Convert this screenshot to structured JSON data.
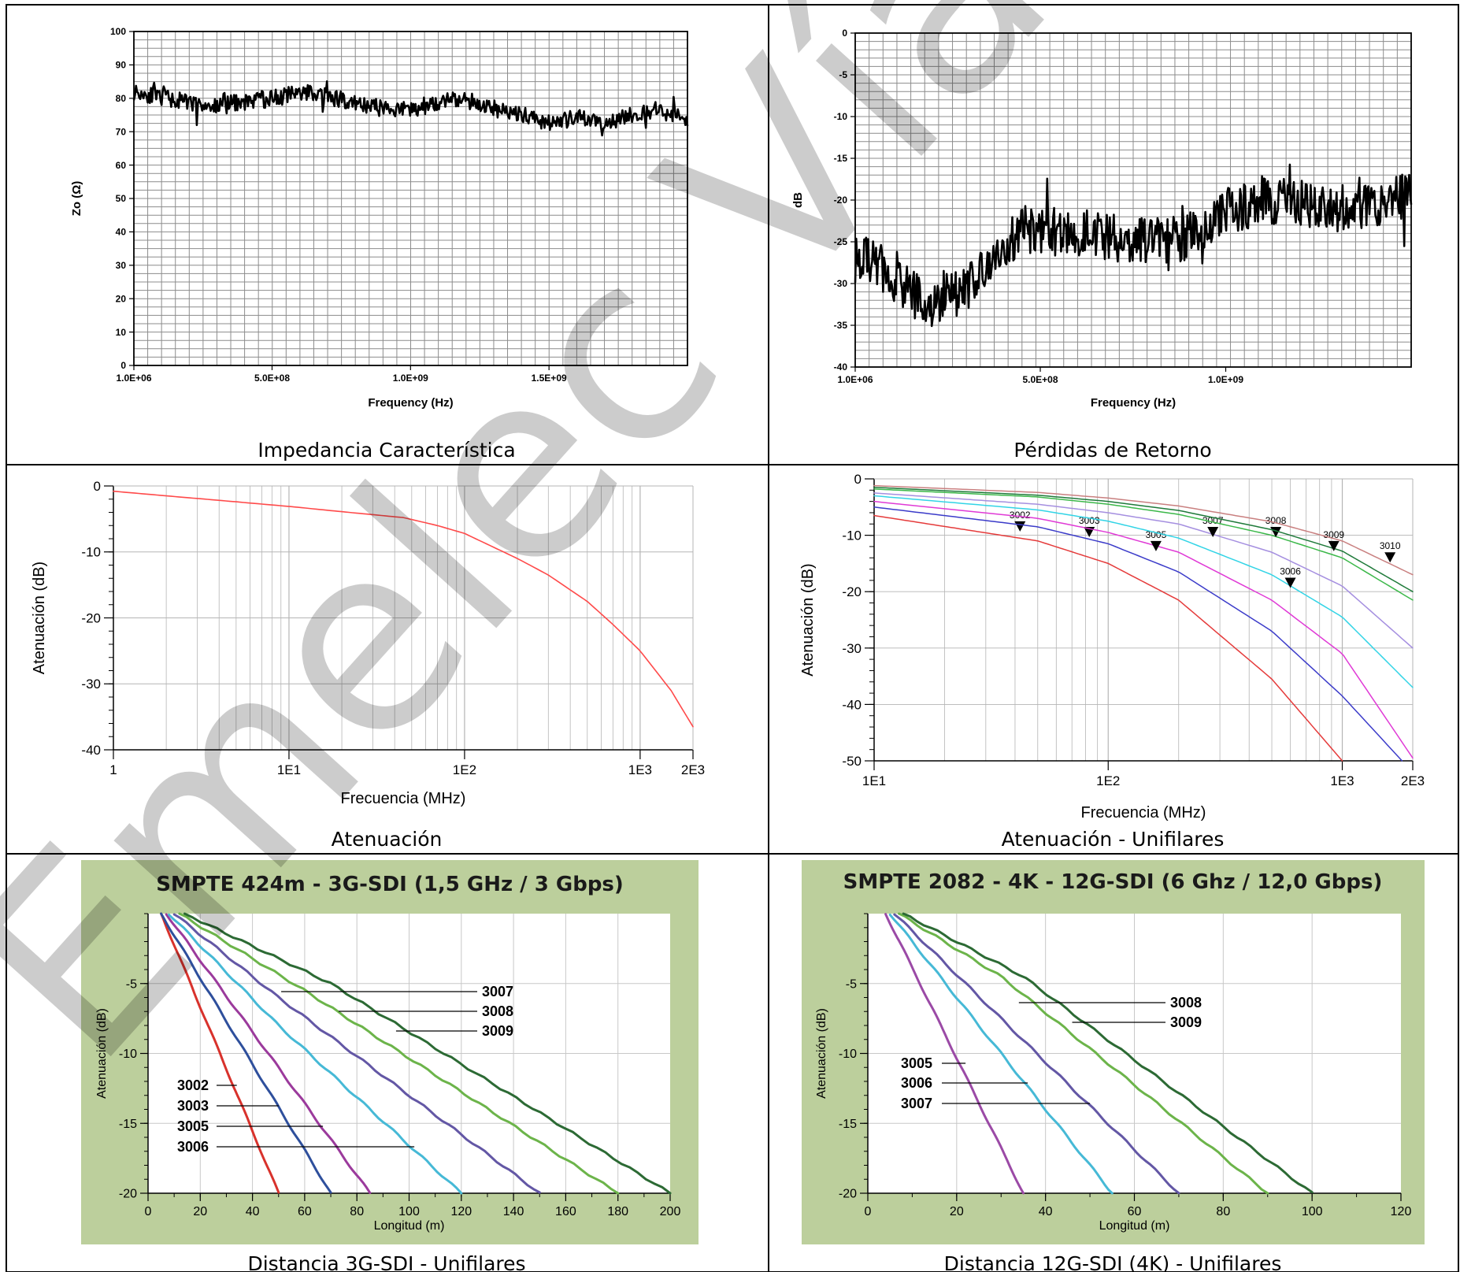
{
  "captions": {
    "c1": "Impedancia Característica",
    "c2": "Pérdidas de Retorno",
    "c3": "Atenuación",
    "c4": "Atenuación - Unifilares",
    "c5": "Distancia 3G-SDI - Unifilares",
    "c6": "Distancia 12G-SDI (4K) - Unifilares"
  },
  "watermark": "Emelec Vías",
  "colors": {
    "border": "#000000",
    "panel_green": "#bccf9c",
    "grid": "#9a9a9a",
    "trace": "#000000"
  },
  "chart_data": [
    {
      "id": "impedance",
      "type": "line",
      "title": "",
      "xlabel": "Frequency (Hz)",
      "ylabel": "Zo (Ω)",
      "xlim": [
        1000000,
        2000000000
      ],
      "ylim": [
        0,
        100
      ],
      "x_ticks": [
        {
          "v": 1000000,
          "label": "1.0E+06"
        },
        {
          "v": 500000000,
          "label": "5.0E+08"
        },
        {
          "v": 1000000000,
          "label": "1.0E+09"
        },
        {
          "v": 1500000000,
          "label": "1.5E+09"
        }
      ],
      "y_ticks": [
        0,
        10,
        20,
        30,
        40,
        50,
        60,
        70,
        80,
        90,
        100
      ],
      "grid": true,
      "series": [
        {
          "x": [
            1000000,
            100000000,
            200000000,
            300000000,
            400000000,
            500000000,
            600000000,
            650000000,
            700000000,
            800000000,
            900000000,
            1000000000,
            1100000000,
            1200000000,
            1300000000,
            1400000000,
            1500000000,
            1600000000,
            1700000000,
            1800000000,
            1900000000,
            2000000000
          ],
          "y": [
            82,
            80.5,
            78.5,
            77.5,
            79,
            80,
            81.5,
            82,
            80.5,
            78.5,
            77,
            76.5,
            79,
            79.5,
            77,
            75.5,
            72.5,
            74,
            73,
            75,
            76.5,
            74
          ]
        }
      ]
    },
    {
      "id": "return-loss",
      "type": "line",
      "title": "",
      "xlabel": "Frequency (Hz)",
      "ylabel": "dB",
      "xlim": [
        1000000,
        1500000000
      ],
      "ylim": [
        -40,
        0
      ],
      "x_ticks": [
        {
          "v": 1000000,
          "label": "1.0E+06"
        },
        {
          "v": 500000000,
          "label": "5.0E+08"
        },
        {
          "v": 1000000000,
          "label": "1.0E+09"
        }
      ],
      "y_ticks": [
        0,
        -5,
        -10,
        -15,
        -20,
        -25,
        -30,
        -35,
        -40
      ],
      "grid": true,
      "series": [
        {
          "x": [
            1000000,
            50000000,
            100000000,
            150000000,
            200000000,
            250000000,
            300000000,
            350000000,
            400000000,
            450000000,
            500000000,
            600000000,
            700000000,
            800000000,
            900000000,
            950000000,
            1000000000,
            1100000000,
            1200000000,
            1300000000,
            1400000000,
            1500000000
          ],
          "y": [
            -27,
            -27.5,
            -29,
            -31,
            -32.5,
            -31.5,
            -30.5,
            -28.5,
            -25.5,
            -23.5,
            -24,
            -23.5,
            -24.5,
            -25,
            -24.5,
            -22.5,
            -21.5,
            -20,
            -20.5,
            -21,
            -20.5,
            -19.5
          ]
        }
      ]
    },
    {
      "id": "attenuation",
      "type": "line",
      "title": "",
      "xlabel": "Frecuencia (MHz)",
      "ylabel": "Atenuación (dB)",
      "x_scale": "log",
      "xlim": [
        1,
        2000
      ],
      "ylim": [
        -40,
        0
      ],
      "x_ticks": [
        {
          "v": 1,
          "label": "1"
        },
        {
          "v": 10,
          "label": "1E1"
        },
        {
          "v": 100,
          "label": "1E2"
        },
        {
          "v": 1000,
          "label": "1E3"
        },
        {
          "v": 2000,
          "label": "2E3"
        }
      ],
      "y_ticks": [
        0,
        -10,
        -20,
        -30,
        -40
      ],
      "grid": true,
      "series": [
        {
          "color": "#ff4a4a",
          "x": [
            1,
            2,
            5,
            10,
            20,
            45,
            70,
            100,
            200,
            300,
            500,
            700,
            1000,
            1500,
            2000
          ],
          "y": [
            -0.8,
            -1.5,
            -2.4,
            -3.1,
            -3.9,
            -4.8,
            -6,
            -7.2,
            -11,
            -13.5,
            -17.5,
            -21,
            -25,
            -31,
            -36.5
          ]
        }
      ]
    },
    {
      "id": "attenuation-unifilares",
      "type": "line",
      "title": "",
      "xlabel": "Frecuencia (MHz)",
      "ylabel": "Atenuación (dB)",
      "x_scale": "log",
      "xlim": [
        10,
        2000
      ],
      "ylim": [
        -50,
        0
      ],
      "x_ticks": [
        {
          "v": 10,
          "label": "1E1"
        },
        {
          "v": 100,
          "label": "1E2"
        },
        {
          "v": 1000,
          "label": "1E3"
        },
        {
          "v": 2000,
          "label": "2E3"
        }
      ],
      "y_ticks": [
        0,
        -10,
        -20,
        -30,
        -40,
        -50
      ],
      "grid": true,
      "series": [
        {
          "name": "3002",
          "color": "#e53b3b",
          "x": [
            10,
            50,
            100,
            200,
            500,
            1000
          ],
          "y": [
            -6.5,
            -11,
            -15,
            -21.5,
            -35.5,
            -50
          ],
          "marker_x": 42,
          "marker_y": -8.5
        },
        {
          "name": "3003",
          "color": "#3b3bc9",
          "x": [
            10,
            50,
            100,
            200,
            500,
            1000,
            1800
          ],
          "y": [
            -5,
            -8.5,
            -11.5,
            -16.5,
            -27,
            -38.5,
            -50
          ],
          "marker_x": 83,
          "marker_y": -9.5
        },
        {
          "name": "3005",
          "color": "#e03ad6",
          "x": [
            10,
            50,
            100,
            200,
            500,
            1000,
            2000
          ],
          "y": [
            -4,
            -7,
            -9.5,
            -13,
            -21.5,
            -31,
            -49.5
          ],
          "marker_x": 160,
          "marker_y": -12
        },
        {
          "name": "3006",
          "color": "#32d4e6",
          "x": [
            10,
            50,
            100,
            200,
            500,
            1000,
            2000
          ],
          "y": [
            -3,
            -5.5,
            -7.5,
            -10.5,
            -17,
            -24.5,
            -37
          ],
          "marker_x": 600,
          "marker_y": -18.5
        },
        {
          "name": "3007",
          "color": "#a58fe0",
          "x": [
            10,
            50,
            100,
            200,
            500,
            1000,
            2000
          ],
          "y": [
            -2.5,
            -4.5,
            -6,
            -8,
            -13,
            -19,
            -30
          ],
          "marker_x": 280,
          "marker_y": -9.5
        },
        {
          "name": "3008",
          "color": "#3cb84a",
          "x": [
            10,
            50,
            100,
            200,
            500,
            1000,
            2000
          ],
          "y": [
            -1.8,
            -3.2,
            -4.5,
            -6.3,
            -10,
            -14,
            -21.5
          ],
          "marker_x": 520,
          "marker_y": -9.5
        },
        {
          "name": "3009",
          "color": "#1f7a3a",
          "x": [
            10,
            50,
            100,
            200,
            500,
            1000,
            2000
          ],
          "y": [
            -1.5,
            -2.9,
            -4,
            -5.6,
            -9,
            -12.8,
            -20
          ],
          "marker_x": 920,
          "marker_y": -12
        },
        {
          "name": "3010",
          "color": "#c98080",
          "x": [
            10,
            50,
            100,
            200,
            500,
            1000,
            2000
          ],
          "y": [
            -1.2,
            -2.4,
            -3.4,
            -4.8,
            -7.6,
            -11,
            -17
          ],
          "marker_x": 1600,
          "marker_y": -14
        }
      ]
    },
    {
      "id": "distance-3g",
      "type": "line",
      "title": "SMPTE 424m - 3G-SDI (1,5 GHz / 3 Gbps)",
      "xlabel": "Longitud (m)",
      "ylabel": "Atenuación (dB)",
      "xlim": [
        0,
        200
      ],
      "ylim": [
        -20,
        0
      ],
      "x_ticks": [
        0,
        20,
        40,
        60,
        80,
        100,
        120,
        140,
        160,
        180,
        200
      ],
      "y_ticks": [
        {
          "v": -5,
          "label": "-5"
        },
        {
          "v": -10,
          "label": "-10"
        },
        {
          "v": -15,
          "label": "-15"
        },
        {
          "v": -20,
          "label": "-20"
        }
      ],
      "grid": true,
      "series": [
        {
          "name": "3002",
          "color": "#d8322c",
          "x": [
            5,
            50
          ],
          "y": [
            0,
            -20
          ],
          "label_at_x": 34
        },
        {
          "name": "3003",
          "color": "#2e4f9c",
          "x": [
            5,
            70
          ],
          "y": [
            0,
            -20
          ],
          "label_at_x": 50
        },
        {
          "name": "3005",
          "color": "#9b3a9c",
          "x": [
            7,
            85
          ],
          "y": [
            0,
            -20
          ],
          "label_at_x": 67
        },
        {
          "name": "3006",
          "color": "#46b9d6",
          "x": [
            8,
            50,
            120
          ],
          "y": [
            0,
            -8,
            -20
          ],
          "label_at_x": 102
        },
        {
          "name": "3007",
          "color": "#6357a5",
          "x": [
            10,
            50,
            150
          ],
          "y": [
            0,
            -6,
            -20
          ],
          "label_at_x": 51
        },
        {
          "name": "3008",
          "color": "#6cb44a",
          "x": [
            12,
            60,
            180
          ],
          "y": [
            0,
            -5.5,
            -20
          ],
          "label_at_x": 73
        },
        {
          "name": "3009",
          "color": "#2c6a34",
          "x": [
            14,
            70,
            200
          ],
          "y": [
            0,
            -5,
            -20
          ],
          "label_at_x": 95
        }
      ]
    },
    {
      "id": "distance-12g",
      "type": "line",
      "title": "SMPTE 2082 - 4K - 12G-SDI (6 Ghz / 12,0 Gbps)",
      "xlabel": "Longitud (m)",
      "ylabel": "Atenuación (dB)",
      "xlim": [
        0,
        120
      ],
      "ylim": [
        -20,
        0
      ],
      "x_ticks": [
        0,
        20,
        40,
        60,
        80,
        100,
        120
      ],
      "y_ticks": [
        {
          "v": -5,
          "label": "-5"
        },
        {
          "v": -10,
          "label": "-10"
        },
        {
          "v": -15,
          "label": "-15"
        },
        {
          "v": -20,
          "label": "-20"
        }
      ],
      "grid": true,
      "series": [
        {
          "name": "3005",
          "color": "#9b4aa6",
          "x": [
            4,
            35
          ],
          "y": [
            0,
            -20
          ],
          "label_at_x": 22
        },
        {
          "name": "3006",
          "color": "#46b9d6",
          "x": [
            5,
            55
          ],
          "y": [
            0,
            -20
          ],
          "label_at_x": 36
        },
        {
          "name": "3007",
          "color": "#6357a5",
          "x": [
            6,
            70
          ],
          "y": [
            0,
            -20
          ],
          "label_at_x": 50
        },
        {
          "name": "3008",
          "color": "#6cb44a",
          "x": [
            7,
            30,
            90
          ],
          "y": [
            0,
            -4.5,
            -20
          ],
          "label_at_x": 34
        },
        {
          "name": "3009",
          "color": "#2c6a34",
          "x": [
            8,
            35,
            100
          ],
          "y": [
            0,
            -4.5,
            -20
          ],
          "label_at_x": 46
        }
      ]
    }
  ]
}
